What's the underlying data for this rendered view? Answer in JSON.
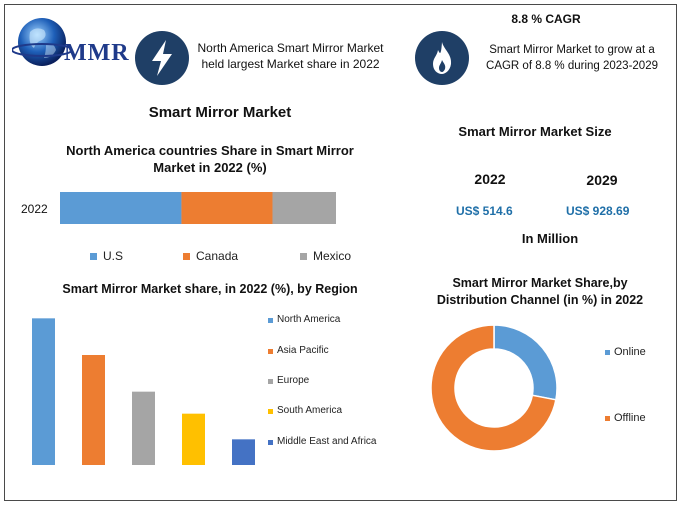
{
  "brand": {
    "name": "MMR"
  },
  "header": {
    "left_text_line1": "North America Smart Mirror Market",
    "left_text_line2": "held largest Market share in 2022",
    "cagr_title": "8.8 % CAGR",
    "right_text_line1": "Smart Mirror Market to grow at a",
    "right_text_line2": "CAGR of 8.8 % during 2023-2029",
    "icon_left": "lightning-icon",
    "icon_right": "flame-icon"
  },
  "main_title": "Smart Mirror Market",
  "market_size": {
    "title": "Smart Mirror Market Size",
    "years": [
      "2022",
      "2029"
    ],
    "values": [
      "US$ 514.6",
      "US$ 928.69"
    ],
    "unit": "In Million"
  },
  "colors": {
    "blue": "#5b9bd5",
    "orange": "#ed7d31",
    "gray": "#a5a5a5",
    "yellow": "#ffc000",
    "darkblue": "#4472c4",
    "accent_text": "#1f6fa8"
  },
  "chart_data": [
    {
      "type": "bar",
      "orientation": "horizontal-stacked",
      "title_line1": "North America countries Share in Smart Mirror",
      "title_line2": "Market in 2022 (%)",
      "categories": [
        "2022"
      ],
      "series": [
        {
          "name": "U.S",
          "values": [
            44
          ],
          "color": "#5b9bd5"
        },
        {
          "name": "Canada",
          "values": [
            33
          ],
          "color": "#ed7d31"
        },
        {
          "name": "Mexico",
          "values": [
            23
          ],
          "color": "#a5a5a5"
        }
      ],
      "xlim": [
        0,
        100
      ],
      "legend": "bottom"
    },
    {
      "type": "bar",
      "title": "Smart Mirror Market share, in 2022 (%), by Region",
      "categories": [
        "North America",
        "Asia Pacific",
        "Europe",
        "South America",
        "Middle East and Africa"
      ],
      "values": [
        40,
        30,
        20,
        14,
        7
      ],
      "colors": [
        "#5b9bd5",
        "#ed7d31",
        "#a5a5a5",
        "#ffc000",
        "#4472c4"
      ],
      "ylim": [
        0,
        45
      ],
      "legend": "right"
    },
    {
      "type": "pie",
      "style": "donut",
      "title_line1": "Smart Mirror Market Share,by",
      "title_line2": "Distribution Channel (in %) in 2022",
      "labels": [
        "Online",
        "Offline"
      ],
      "values": [
        28,
        72
      ],
      "colors": [
        "#5b9bd5",
        "#ed7d31"
      ],
      "legend": "right"
    }
  ]
}
